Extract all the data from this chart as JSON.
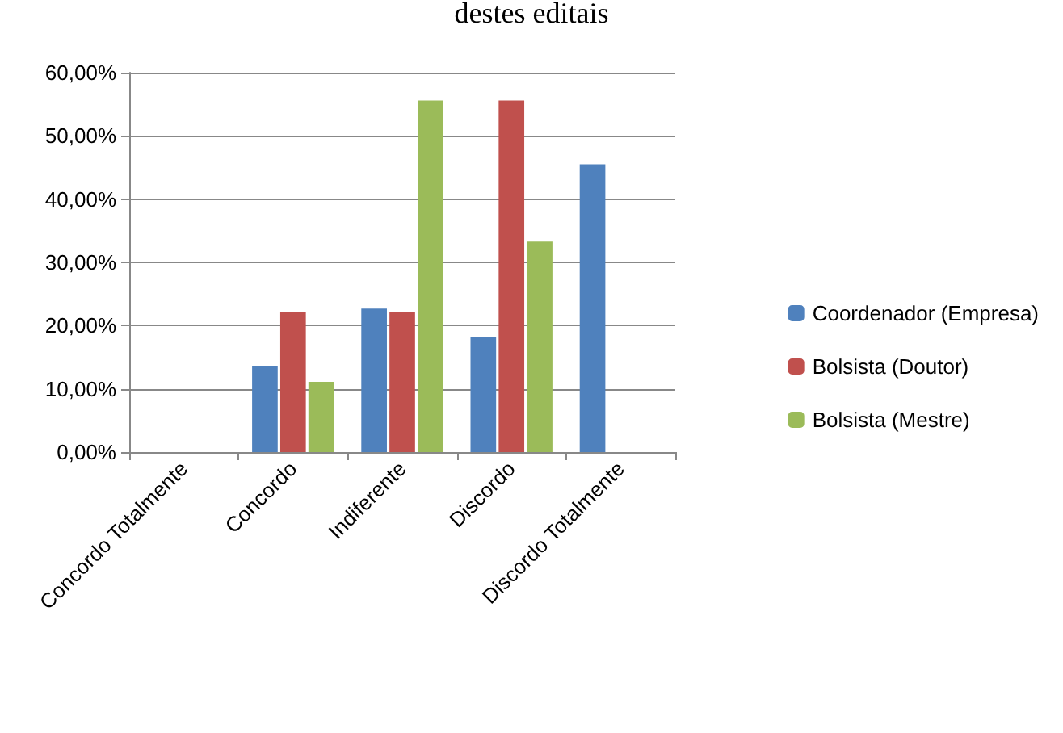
{
  "chart_data": {
    "type": "bar",
    "title": "destes editais",
    "categories": [
      "Concordo Totalmente",
      "Concordo",
      "Indiferente",
      "Discordo",
      "Discordo Totalmente"
    ],
    "series": [
      {
        "name": "Coordenador (Empresa)",
        "color": "#4f81bd",
        "values": [
          0,
          13.6,
          22.7,
          18.2,
          45.5
        ]
      },
      {
        "name": "Bolsista (Doutor)",
        "color": "#c0504d",
        "values": [
          0,
          22.2,
          22.2,
          55.6,
          0
        ]
      },
      {
        "name": "Bolsista (Mestre)",
        "color": "#9bbb59",
        "values": [
          0,
          11.1,
          55.6,
          33.3,
          0
        ]
      }
    ],
    "ylim": [
      0,
      60
    ],
    "yticks": [
      {
        "value": 0,
        "label": "0,00%"
      },
      {
        "value": 10,
        "label": "10,00%"
      },
      {
        "value": 20,
        "label": "20,00%"
      },
      {
        "value": 30,
        "label": "30,00%"
      },
      {
        "value": 40,
        "label": "40,00%"
      },
      {
        "value": 50,
        "label": "50,00%"
      },
      {
        "value": 60,
        "label": "60,00%"
      }
    ],
    "grid": "y",
    "legend": "right"
  }
}
